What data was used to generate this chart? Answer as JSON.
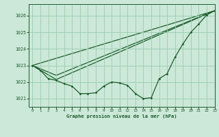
{
  "title": "Graphe pression niveau de la mer (hPa)",
  "background_color": "#cce8d8",
  "grid_color": "#99ccb0",
  "line_color": "#1a5c2a",
  "xlim": [
    -0.5,
    23
  ],
  "ylim": [
    1020.5,
    1026.7
  ],
  "yticks": [
    1021,
    1022,
    1023,
    1024,
    1025,
    1026
  ],
  "xticks": [
    0,
    1,
    2,
    3,
    4,
    5,
    6,
    7,
    8,
    9,
    10,
    11,
    12,
    13,
    14,
    15,
    16,
    17,
    18,
    19,
    20,
    21,
    22,
    23
  ],
  "series1_x": [
    0,
    1,
    2,
    3,
    4,
    5,
    6,
    7,
    8,
    9,
    10,
    11,
    12,
    13,
    14,
    15,
    16,
    17,
    18,
    19,
    20,
    21,
    22,
    23
  ],
  "series1_y": [
    1023.0,
    1022.7,
    1022.2,
    1022.1,
    1021.9,
    1021.75,
    1021.3,
    1021.3,
    1021.35,
    1021.75,
    1022.0,
    1021.95,
    1021.8,
    1021.3,
    1021.0,
    1021.05,
    1022.2,
    1022.5,
    1023.5,
    1024.3,
    1025.0,
    1025.5,
    1026.05,
    1026.3
  ],
  "series2_x": [
    0,
    23
  ],
  "series2_y": [
    1023.0,
    1026.3
  ],
  "series3_x": [
    0,
    3,
    23
  ],
  "series3_y": [
    1023.0,
    1022.15,
    1026.3
  ],
  "series4_x": [
    0,
    3,
    23
  ],
  "series4_y": [
    1023.0,
    1022.4,
    1026.3
  ]
}
